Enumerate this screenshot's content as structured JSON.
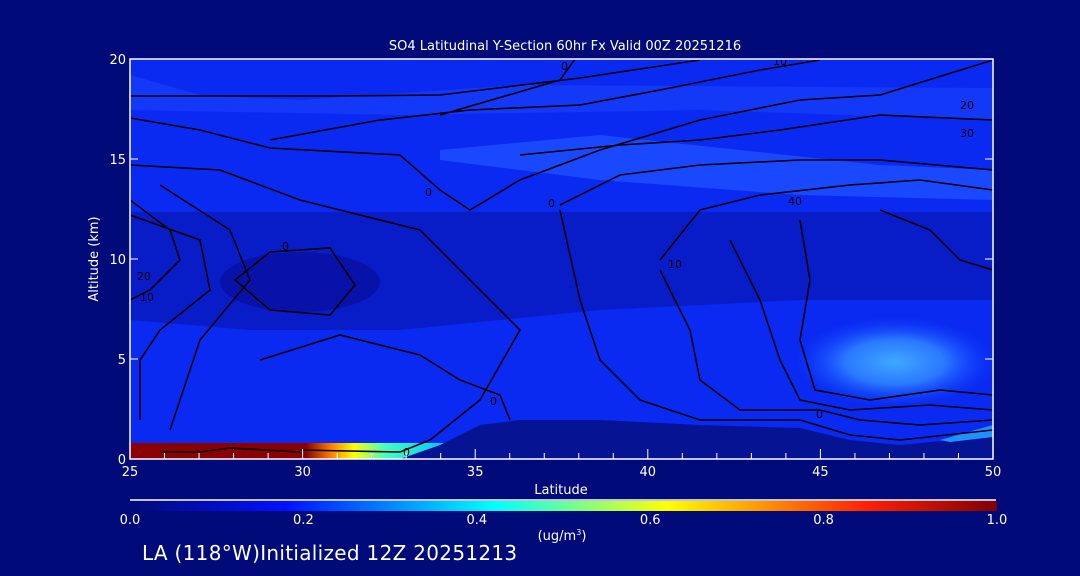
{
  "chart_data": {
    "type": "heatmap",
    "subtype": "filled-contour cross-section with line contours",
    "title": "SO4 Latitudinal Y-Section 60hr  Fx Valid 00Z 20251216",
    "xlabel": "Latitude",
    "ylabel": "Altitude (km)",
    "xlim": [
      25,
      50
    ],
    "ylim": [
      0,
      20
    ],
    "xticks": [
      25,
      30,
      35,
      40,
      45,
      50
    ],
    "yticks": [
      0,
      5,
      10,
      15,
      20
    ],
    "xtick_labels": [
      "25",
      "30",
      "35",
      "40",
      "45",
      "50"
    ],
    "ytick_labels": [
      "0",
      "5",
      "10",
      "15",
      "20"
    ],
    "colorbar": {
      "label": "(ug/m",
      "label_sup": "3",
      "label_end": ")",
      "range": [
        0.0,
        1.0
      ],
      "ticks": [
        0.0,
        0.2,
        0.4,
        0.6,
        0.8,
        1.0
      ],
      "tick_labels": [
        "0.0",
        "0.2",
        "0.4",
        "0.6",
        "0.8",
        "1.0"
      ],
      "colors": [
        "#000a78",
        "#0010ff",
        "#00ffff",
        "#ffff00",
        "#ff0000",
        "#800000"
      ]
    },
    "contour_labels": [
      "0",
      "0",
      "10",
      "20",
      "30",
      "40",
      "0",
      "20",
      "10",
      "0",
      "10",
      "0",
      "0",
      "0"
    ],
    "features": {
      "max_concentration_region": "surface, latitude 25-29.5, ~1.0 ug/m3",
      "secondary_region": "latitude 45-50, altitude 3-6 km, ~0.25 ug/m3"
    }
  },
  "footer": "LA (118°W)Initialized 12Z 20251213"
}
